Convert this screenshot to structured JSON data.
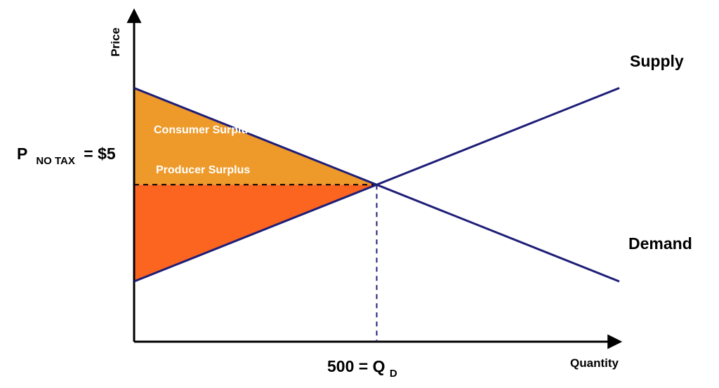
{
  "chart_data": {
    "type": "line",
    "xlabel": "Quantity",
    "ylabel": "Price",
    "series": [
      {
        "name": "Supply",
        "x": [
          0,
          500,
          1000
        ],
        "y": [
          3,
          5,
          7
        ],
        "color": "#1e1e78"
      },
      {
        "name": "Demand",
        "x": [
          0,
          500,
          1000
        ],
        "y": [
          7,
          5,
          3
        ],
        "color": "#1e1e78"
      }
    ],
    "equilibrium": {
      "x": 500,
      "y": 5
    },
    "areas": [
      {
        "name": "Consumer Surplus",
        "color": "#ee9a2a"
      },
      {
        "name": "Producer Surplus",
        "color": "#fb6520"
      }
    ],
    "price_label": {
      "main": "P",
      "sub": "NO TAX",
      "suffix": "= $5"
    },
    "quantity_label": {
      "main": "500 = Q",
      "sub": "D"
    },
    "colors": {
      "axis": "#000000",
      "lines": "#1e1e78",
      "guides": "#1e1e78"
    }
  }
}
